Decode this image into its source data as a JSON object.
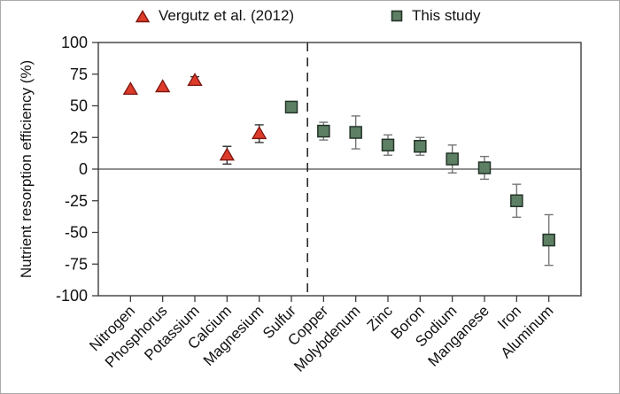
{
  "figure": {
    "background": "#ffffff",
    "border_color": "#ababab"
  },
  "legend": {
    "position": "top",
    "items": [
      {
        "label": "Vergutz et al. (2012)",
        "marker": "triangle",
        "color": "#dd3b2a"
      },
      {
        "label": "This study",
        "marker": "square",
        "color": "#5d7f63"
      }
    ]
  },
  "chart_data": {
    "type": "scatter",
    "title": "",
    "xlabel": "",
    "ylabel": "Nutrient resorption efficiency (%)",
    "ylim": [
      -100,
      100
    ],
    "yticks": [
      100,
      75,
      50,
      25,
      0,
      -25,
      -50,
      -75,
      -100
    ],
    "grid": false,
    "zero_line": true,
    "divider_after_category": "Sulfur",
    "legend_position": "top",
    "categories": [
      "Nitrogen",
      "Phosphorus",
      "Potassium",
      "Calcium",
      "Magnesium",
      "Sulfur",
      "Copper",
      "Molybdenum",
      "Zinc",
      "Boron",
      "Sodium",
      "Manganese",
      "Iron",
      "Aluminum"
    ],
    "series": [
      {
        "name": "Vergutz et al. (2012)",
        "marker": "triangle",
        "color": "#dd3b2a",
        "border": "#7c150e",
        "error_color": "#333333",
        "points": [
          {
            "category": "Nitrogen",
            "value": 63,
            "error": 0
          },
          {
            "category": "Phosphorus",
            "value": 65,
            "error": 0
          },
          {
            "category": "Potassium",
            "value": 70,
            "error": 3
          },
          {
            "category": "Calcium",
            "value": 11,
            "error": 7
          },
          {
            "category": "Magnesium",
            "value": 28,
            "error": 7
          }
        ]
      },
      {
        "name": "This study",
        "marker": "square",
        "color": "#5d7f63",
        "border": "#24342a",
        "error_color": "#757575",
        "points": [
          {
            "category": "Sulfur",
            "value": 49,
            "error": 0
          },
          {
            "category": "Copper",
            "value": 30,
            "error": 7
          },
          {
            "category": "Molybdenum",
            "value": 29,
            "error": 13
          },
          {
            "category": "Zinc",
            "value": 19,
            "error": 8
          },
          {
            "category": "Boron",
            "value": 18,
            "error": 7
          },
          {
            "category": "Sodium",
            "value": 8,
            "error": 11
          },
          {
            "category": "Manganese",
            "value": 1,
            "error": 9
          },
          {
            "category": "Iron",
            "value": -25,
            "error": 13
          },
          {
            "category": "Aluminum",
            "value": -56,
            "error": 20
          }
        ]
      }
    ]
  }
}
